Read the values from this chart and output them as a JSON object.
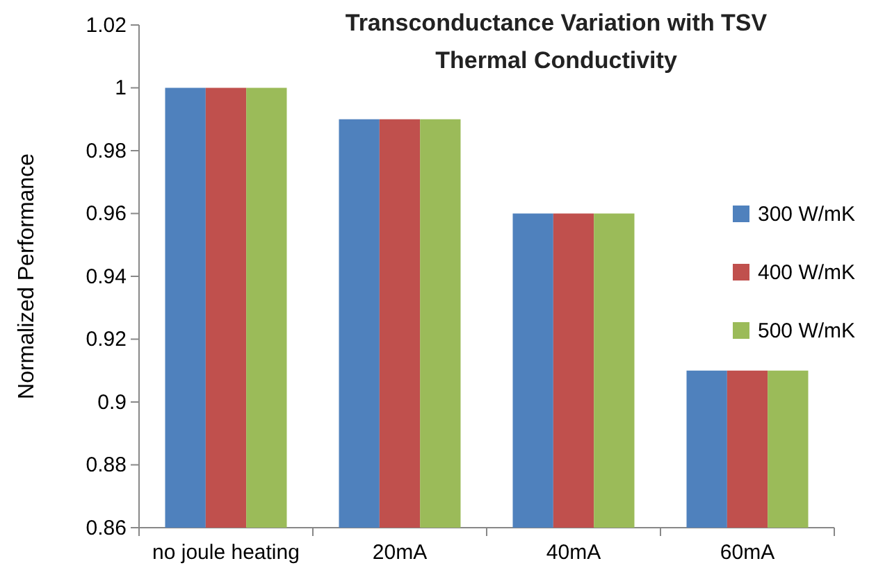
{
  "chart_data": {
    "type": "bar",
    "title": "Transconductance Variation with TSV Thermal Conductivity",
    "ylabel": "Normalized Performance",
    "categories": [
      "no joule heating",
      "20mA",
      "40mA",
      "60mA"
    ],
    "series": [
      {
        "name": "300 W/mK",
        "color": "#4f81bd",
        "values": [
          1,
          0.99,
          0.96,
          0.91
        ]
      },
      {
        "name": "400 W/mK",
        "color": "#c0504d",
        "values": [
          1,
          0.99,
          0.96,
          0.91
        ]
      },
      {
        "name": "500 W/mK",
        "color": "#9bbb59",
        "values": [
          1,
          0.99,
          0.96,
          0.91
        ]
      }
    ],
    "ylim": [
      0.86,
      1.02
    ],
    "yticks": [
      0.86,
      0.88,
      0.9,
      0.92,
      0.94,
      0.96,
      0.98,
      1,
      1.02
    ],
    "grid": false,
    "legend": "right"
  }
}
